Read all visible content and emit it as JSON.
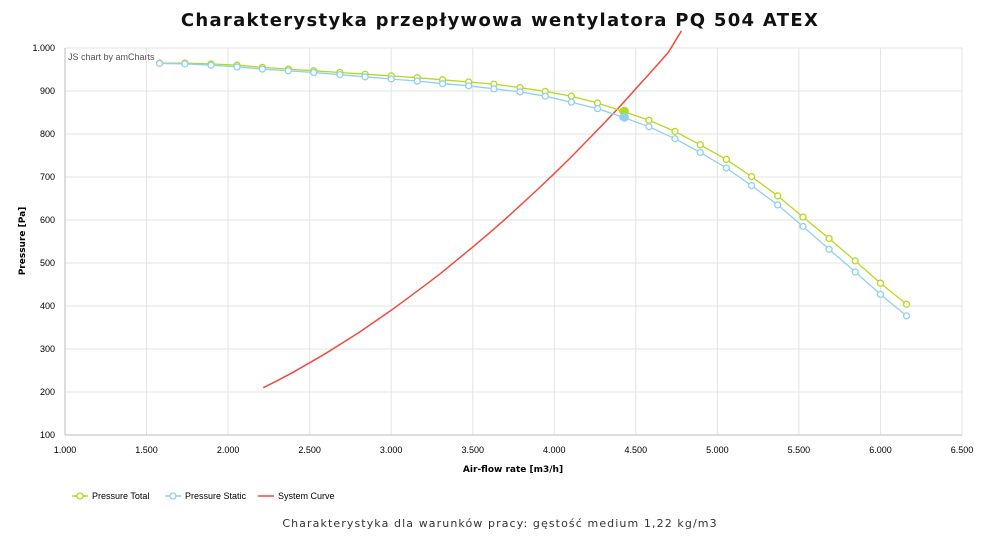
{
  "title": "Charakterystyka przepływowa wentylatora PQ 504 ATEX",
  "caption": "Charakterystyka dla warunków pracy: gęstość medium 1,22 kg/m3",
  "credit": "JS chart by amCharts",
  "chart_data": {
    "type": "line",
    "xlabel": "Air-flow rate [m3/h]",
    "ylabel": "Pressure [Pa]",
    "xlim": [
      1000,
      6500
    ],
    "ylim": [
      100,
      1000
    ],
    "xticks": [
      1000,
      1500,
      2000,
      2500,
      3000,
      3500,
      4000,
      4500,
      5000,
      5500,
      6000,
      6500
    ],
    "xtick_labels": [
      "1.000",
      "1.500",
      "2.000",
      "2.500",
      "3.000",
      "3.500",
      "4.000",
      "4.500",
      "5.000",
      "5.500",
      "6.000",
      "6.500"
    ],
    "yticks": [
      100,
      200,
      300,
      400,
      500,
      600,
      700,
      800,
      900,
      1000
    ],
    "ytick_labels": [
      "100",
      "200",
      "300",
      "400",
      "500",
      "600",
      "700",
      "800",
      "900",
      "1.000"
    ],
    "grid": true,
    "legend_position": "bottom-left",
    "series": [
      {
        "name": "Pressure Total",
        "color": "#b5d91f",
        "marker": "circle",
        "x": [
          1580,
          1735,
          1895,
          2055,
          2210,
          2370,
          2525,
          2685,
          2840,
          3000,
          3160,
          3315,
          3475,
          3630,
          3790,
          3945,
          4105,
          4265,
          4420,
          4580,
          4740,
          4895,
          5055,
          5210,
          5370,
          5525,
          5685,
          5845,
          6000,
          6160
        ],
        "y": [
          965,
          965,
          963,
          960,
          955,
          951,
          947,
          943,
          939,
          935,
          931,
          926,
          921,
          916,
          908,
          899,
          888,
          872,
          853,
          832,
          806,
          775,
          741,
          701,
          656,
          607,
          557,
          505,
          453,
          404
        ]
      },
      {
        "name": "Pressure Static",
        "color": "#8fd0f0",
        "marker": "circle",
        "x": [
          1580,
          1735,
          1895,
          2055,
          2210,
          2370,
          2525,
          2685,
          2840,
          3000,
          3160,
          3315,
          3475,
          3630,
          3790,
          3945,
          4105,
          4265,
          4420,
          4580,
          4740,
          4895,
          5055,
          5210,
          5370,
          5525,
          5685,
          5845,
          6000,
          6160
        ],
        "y": [
          964,
          963,
          960,
          956,
          951,
          947,
          943,
          938,
          933,
          928,
          923,
          917,
          912,
          905,
          898,
          888,
          874,
          859,
          839,
          817,
          789,
          757,
          721,
          680,
          635,
          585,
          532,
          479,
          427,
          377
        ]
      },
      {
        "name": "System Curve",
        "color": "#f04a3e",
        "marker": "none",
        "x": [
          2215,
          2300,
          2400,
          2500,
          2600,
          2700,
          2800,
          2900,
          3000,
          3100,
          3200,
          3300,
          3400,
          3500,
          3600,
          3700,
          3800,
          3900,
          4000,
          4100,
          4200,
          4300,
          4400,
          4500,
          4600,
          4700,
          4780
        ],
        "y": [
          210,
          226,
          246,
          268,
          290,
          314,
          338,
          364,
          390,
          418,
          446,
          475,
          506,
          537,
          569,
          602,
          637,
          672,
          708,
          745,
          784,
          823,
          863,
          905,
          947,
          990,
          1040
        ]
      }
    ],
    "operating_point": {
      "x": 4430,
      "y_total": 853,
      "y_static": 839
    }
  }
}
